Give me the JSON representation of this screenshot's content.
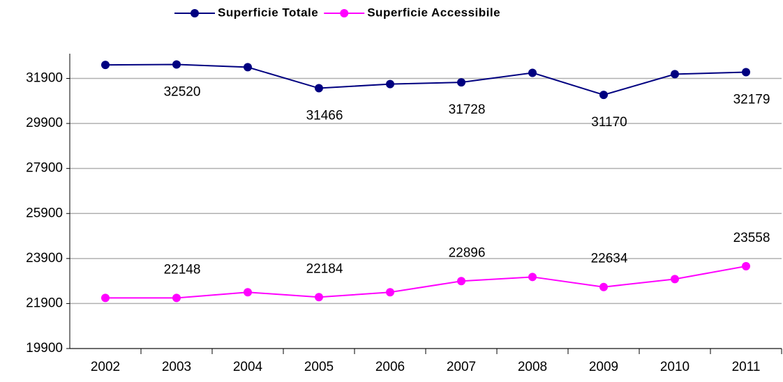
{
  "chart_data": {
    "type": "line",
    "categories": [
      "2002",
      "2003",
      "2004",
      "2005",
      "2006",
      "2007",
      "2008",
      "2009",
      "2010",
      "2011"
    ],
    "series": [
      {
        "name": "Superficie Totale",
        "color": "#000080",
        "values": [
          32500,
          32520,
          32400,
          31466,
          31650,
          31728,
          32150,
          31170,
          32090,
          32179
        ],
        "value_labels": [
          null,
          32520,
          null,
          31466,
          null,
          31728,
          null,
          31170,
          null,
          32179
        ]
      },
      {
        "name": "Superficie Accessibile",
        "color": "#ff00ff",
        "values": [
          22150,
          22148,
          22400,
          22184,
          22400,
          22896,
          23080,
          22634,
          22985,
          23558
        ],
        "value_labels": [
          null,
          22148,
          null,
          22184,
          null,
          22896,
          null,
          22634,
          null,
          23558
        ]
      }
    ],
    "ylim": [
      19900,
      33000
    ],
    "yticks": [
      19900,
      21900,
      23900,
      25900,
      27900,
      29900,
      31900
    ],
    "grid": true,
    "legend": "top"
  }
}
